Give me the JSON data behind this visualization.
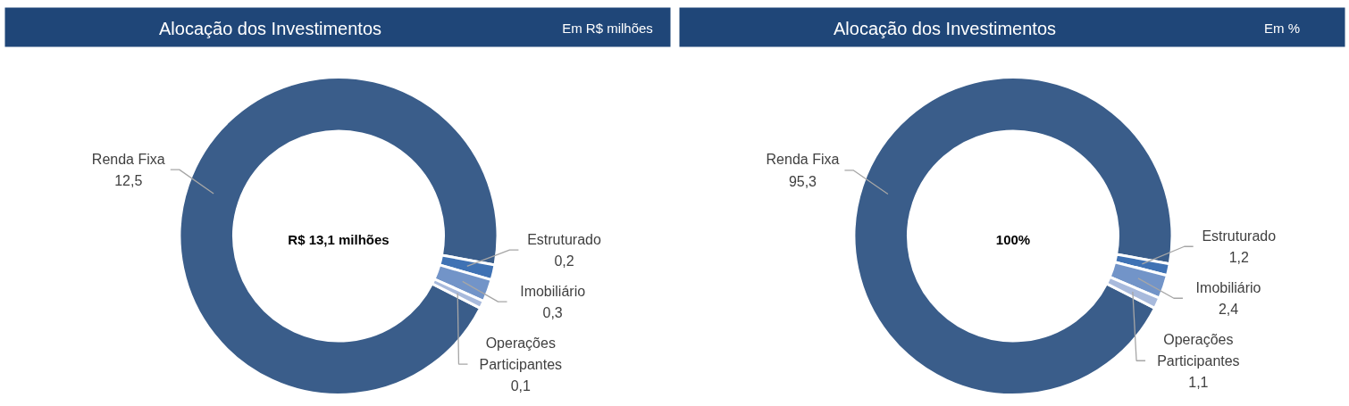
{
  "chart_data": [
    {
      "type": "donut",
      "title": "Alocação dos Investimentos",
      "subtitle": "Em R$ milhões",
      "categories": [
        "Renda Fixa",
        "Estruturado",
        "Imobiliário",
        "Operações Participantes"
      ],
      "values": [
        12.5,
        0.2,
        0.3,
        0.1
      ],
      "value_labels": [
        "12,5",
        "0,2",
        "0,3",
        "0,1"
      ],
      "colors": [
        "#3a5d8a",
        "#3f72b4",
        "#7294c8",
        "#a8badc"
      ],
      "annotations": [
        "R$ 13,1 milhões"
      ]
    },
    {
      "type": "donut",
      "title": "Alocação dos Investimentos",
      "subtitle": "Em %",
      "categories": [
        "Renda Fixa",
        "Estruturado",
        "Imobiliário",
        "Operações Participantes"
      ],
      "values": [
        95.3,
        1.2,
        2.4,
        1.1
      ],
      "value_labels": [
        "95,3",
        "1,2",
        "2,4",
        "1,1"
      ],
      "colors": [
        "#3a5d8a",
        "#3f72b4",
        "#7294c8",
        "#a8badc"
      ],
      "annotations": [
        "100%"
      ]
    }
  ]
}
